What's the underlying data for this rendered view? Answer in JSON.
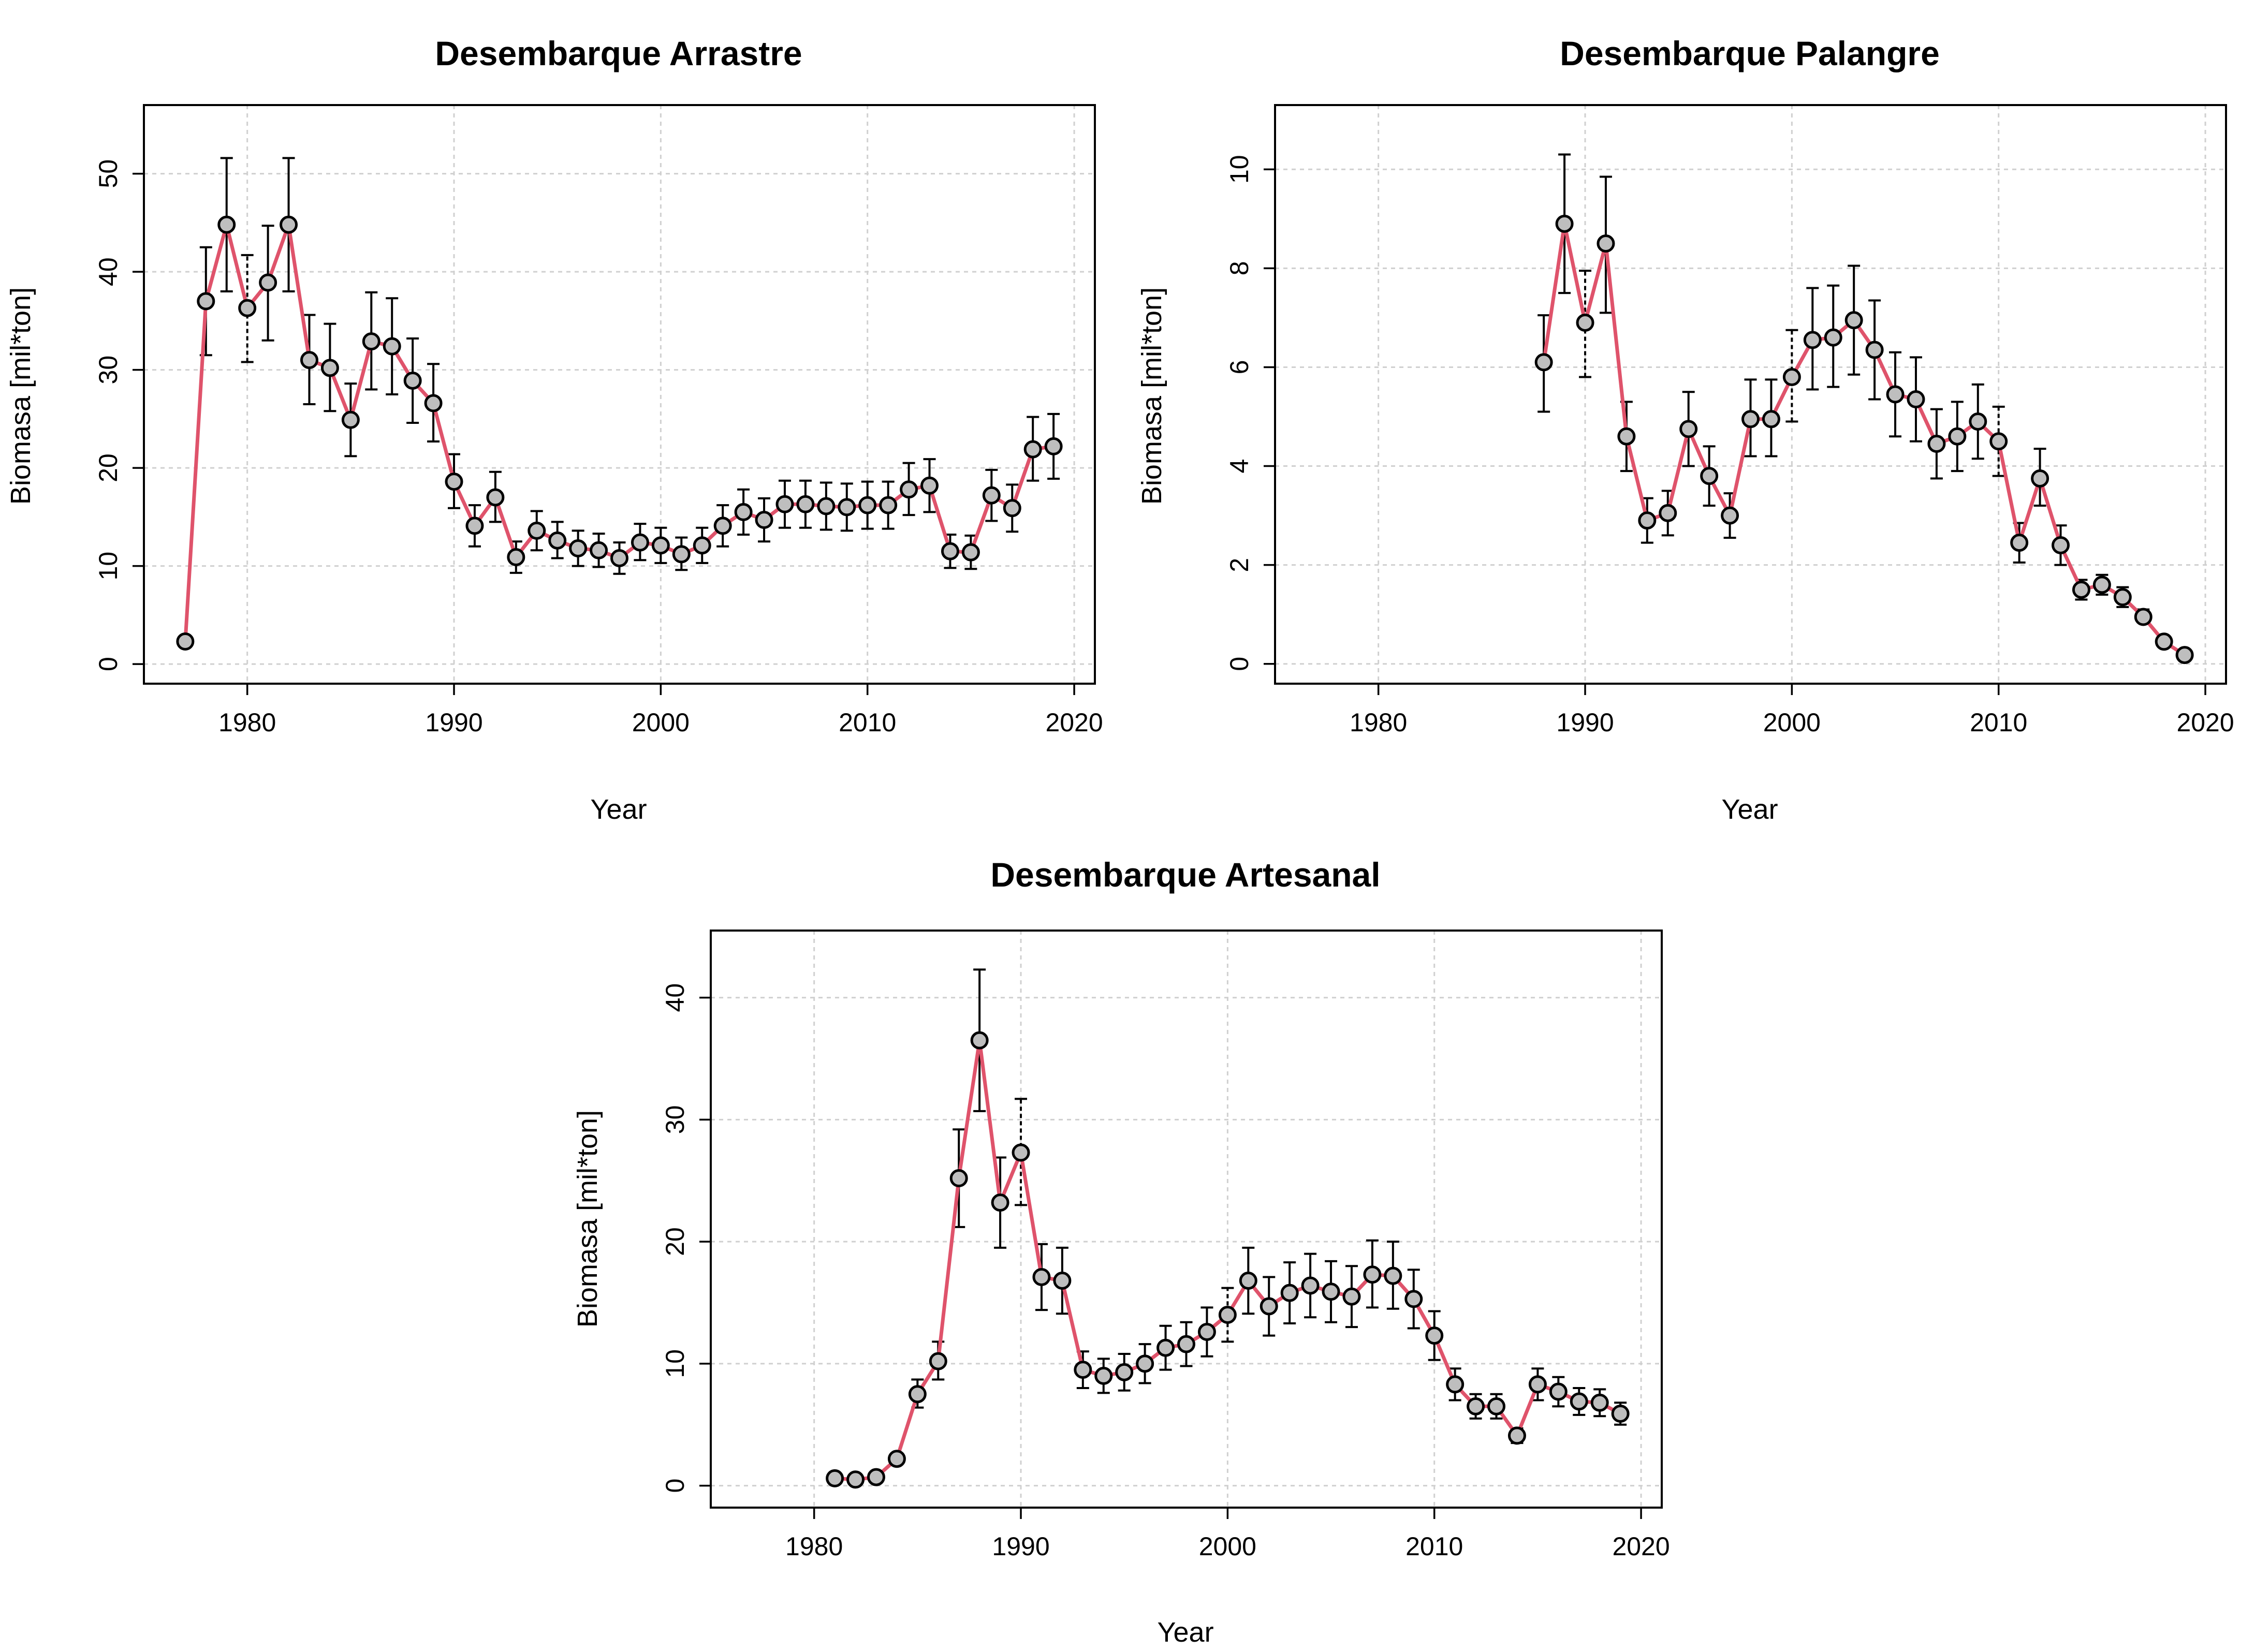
{
  "chart_data": [
    {
      "type": "line",
      "title": "Desembarque Arrastre",
      "xlabel": "Year",
      "ylabel": "Biomasa [mil*ton]",
      "xlim": [
        1975,
        2021
      ],
      "ylim": [
        -2,
        57
      ],
      "xticks": [
        1980,
        1990,
        2000,
        2010,
        2020
      ],
      "yticks": [
        0,
        10,
        20,
        30,
        40,
        50
      ],
      "grid": true,
      "line_color": "#DF536B",
      "point_fill": "#BEBEBE",
      "series": [
        {
          "x": [
            1977,
            1978,
            1979,
            1980,
            1981,
            1982,
            1983,
            1984,
            1985,
            1986,
            1987,
            1988,
            1989,
            1990,
            1991,
            1992,
            1993,
            1994,
            1995,
            1996,
            1997,
            1998,
            1999,
            2000,
            2001,
            2002,
            2003,
            2004,
            2005,
            2006,
            2007,
            2008,
            2009,
            2010,
            2011,
            2012,
            2013,
            2014,
            2015,
            2016,
            2017,
            2018,
            2019
          ],
          "y": [
            2.3,
            37.0,
            44.8,
            36.3,
            38.9,
            44.8,
            31.0,
            30.2,
            24.9,
            32.9,
            32.4,
            28.9,
            26.6,
            18.6,
            14.1,
            17.0,
            10.9,
            13.6,
            12.6,
            11.8,
            11.6,
            10.8,
            12.4,
            12.1,
            11.2,
            12.1,
            14.1,
            15.5,
            14.7,
            16.3,
            16.3,
            16.1,
            16.0,
            16.2,
            16.2,
            17.8,
            18.2,
            11.5,
            11.4,
            17.2,
            15.9,
            21.9,
            22.2
          ],
          "err_lo": [
            null,
            31.5,
            38.0,
            30.8,
            33.0,
            38.0,
            26.5,
            25.8,
            21.2,
            28.0,
            27.5,
            24.6,
            22.7,
            15.9,
            12.0,
            14.5,
            9.3,
            11.6,
            10.8,
            10.0,
            9.9,
            9.2,
            10.6,
            10.3,
            9.6,
            10.3,
            12.0,
            13.2,
            12.5,
            13.9,
            13.9,
            13.7,
            13.6,
            13.8,
            13.8,
            15.2,
            15.5,
            9.8,
            9.7,
            14.6,
            13.5,
            18.7,
            18.9
          ],
          "err_hi": [
            null,
            42.5,
            51.6,
            41.7,
            44.7,
            51.6,
            35.6,
            34.7,
            28.6,
            37.9,
            37.3,
            33.2,
            30.6,
            21.4,
            16.2,
            19.6,
            12.5,
            15.6,
            14.5,
            13.6,
            13.3,
            12.4,
            14.3,
            13.9,
            12.9,
            13.9,
            16.2,
            17.8,
            16.9,
            18.7,
            18.7,
            18.5,
            18.4,
            18.6,
            18.6,
            20.5,
            20.9,
            13.2,
            13.1,
            19.8,
            18.3,
            25.2,
            25.5
          ],
          "dashed_err_x": [
            1980
          ]
        }
      ]
    },
    {
      "type": "line",
      "title": "Desembarque Palangre",
      "xlabel": "Year",
      "ylabel": "Biomasa [mil*ton]",
      "xlim": [
        1975,
        2021
      ],
      "ylim": [
        -0.4,
        11.3
      ],
      "xticks": [
        1980,
        1990,
        2000,
        2010,
        2020
      ],
      "yticks": [
        0,
        2,
        4,
        6,
        8,
        10
      ],
      "grid": true,
      "line_color": "#DF536B",
      "point_fill": "#BEBEBE",
      "series": [
        {
          "x": [
            1988,
            1989,
            1990,
            1991,
            1992,
            1993,
            1994,
            1995,
            1996,
            1997,
            1998,
            1999,
            2000,
            2001,
            2002,
            2003,
            2004,
            2005,
            2006,
            2007,
            2008,
            2009,
            2010,
            2011,
            2012,
            2013,
            2014,
            2015,
            2016,
            2017,
            2018,
            2019
          ],
          "y": [
            6.1,
            8.9,
            6.9,
            8.5,
            4.6,
            2.9,
            3.05,
            4.75,
            3.8,
            3.0,
            4.95,
            4.95,
            5.8,
            6.55,
            6.6,
            6.95,
            6.35,
            5.45,
            5.35,
            4.45,
            4.6,
            4.9,
            4.5,
            2.45,
            3.75,
            2.4,
            1.5,
            1.6,
            1.35,
            0.95,
            0.45,
            0.18
          ],
          "err_lo": [
            5.1,
            7.5,
            5.8,
            7.1,
            3.9,
            2.45,
            2.6,
            4.0,
            3.2,
            2.55,
            4.2,
            4.2,
            4.9,
            5.55,
            5.6,
            5.85,
            5.35,
            4.6,
            4.5,
            3.75,
            3.9,
            4.15,
            3.8,
            2.05,
            3.2,
            2.0,
            1.3,
            1.4,
            1.15,
            0.85,
            0.38,
            0.15
          ],
          "err_hi": [
            7.05,
            10.3,
            7.95,
            9.85,
            5.3,
            3.35,
            3.5,
            5.5,
            4.4,
            3.45,
            5.75,
            5.75,
            6.75,
            7.6,
            7.65,
            8.05,
            7.35,
            6.3,
            6.2,
            5.15,
            5.3,
            5.65,
            5.2,
            2.85,
            4.35,
            2.8,
            1.7,
            1.8,
            1.55,
            1.1,
            0.52,
            0.2
          ],
          "dashed_err_x": [
            1990,
            2000,
            2010
          ]
        }
      ]
    },
    {
      "type": "line",
      "title": "Desembarque Artesanal",
      "xlabel": "Year",
      "ylabel": "Biomasa [mil*ton]",
      "xlim": [
        1975,
        2021
      ],
      "ylim": [
        -1.8,
        45.5
      ],
      "xticks": [
        1980,
        1990,
        2000,
        2010,
        2020
      ],
      "yticks": [
        0,
        10,
        20,
        30,
        40
      ],
      "grid": true,
      "line_color": "#DF536B",
      "point_fill": "#BEBEBE",
      "series": [
        {
          "x": [
            1981,
            1982,
            1983,
            1984,
            1985,
            1986,
            1987,
            1988,
            1989,
            1990,
            1991,
            1992,
            1993,
            1994,
            1995,
            1996,
            1997,
            1998,
            1999,
            2000,
            2001,
            2002,
            2003,
            2004,
            2005,
            2006,
            2007,
            2008,
            2009,
            2010,
            2011,
            2012,
            2013,
            2014,
            2015,
            2016,
            2017,
            2018,
            2019
          ],
          "y": [
            0.6,
            0.5,
            0.7,
            2.2,
            7.5,
            10.2,
            25.2,
            36.5,
            23.2,
            27.3,
            17.1,
            16.8,
            9.5,
            9.0,
            9.3,
            10.0,
            11.3,
            11.6,
            12.6,
            14.0,
            16.8,
            14.7,
            15.8,
            16.4,
            15.9,
            15.5,
            17.3,
            17.2,
            15.3,
            12.3,
            8.3,
            6.5,
            6.5,
            4.1,
            8.3,
            7.7,
            6.9,
            6.8,
            5.9
          ],
          "err_lo": [
            null,
            null,
            null,
            null,
            6.4,
            8.7,
            21.2,
            30.7,
            19.5,
            23.0,
            14.4,
            14.1,
            8.0,
            7.6,
            7.8,
            8.4,
            9.5,
            9.8,
            10.6,
            11.8,
            14.1,
            12.3,
            13.3,
            13.8,
            13.4,
            13.0,
            14.6,
            14.5,
            12.9,
            10.3,
            7.0,
            5.5,
            5.5,
            3.5,
            7.0,
            6.5,
            5.8,
            5.7,
            5.0
          ],
          "err_hi": [
            null,
            null,
            null,
            null,
            8.7,
            11.8,
            29.2,
            42.3,
            26.9,
            31.7,
            19.8,
            19.5,
            11.0,
            10.4,
            10.8,
            11.6,
            13.1,
            13.4,
            14.6,
            16.2,
            19.5,
            17.1,
            18.3,
            19.0,
            18.4,
            18.0,
            20.1,
            20.0,
            17.7,
            14.3,
            9.6,
            7.5,
            7.5,
            4.7,
            9.6,
            8.9,
            8.0,
            7.9,
            6.8
          ],
          "dashed_err_x": [
            1990,
            2000
          ]
        }
      ]
    }
  ]
}
